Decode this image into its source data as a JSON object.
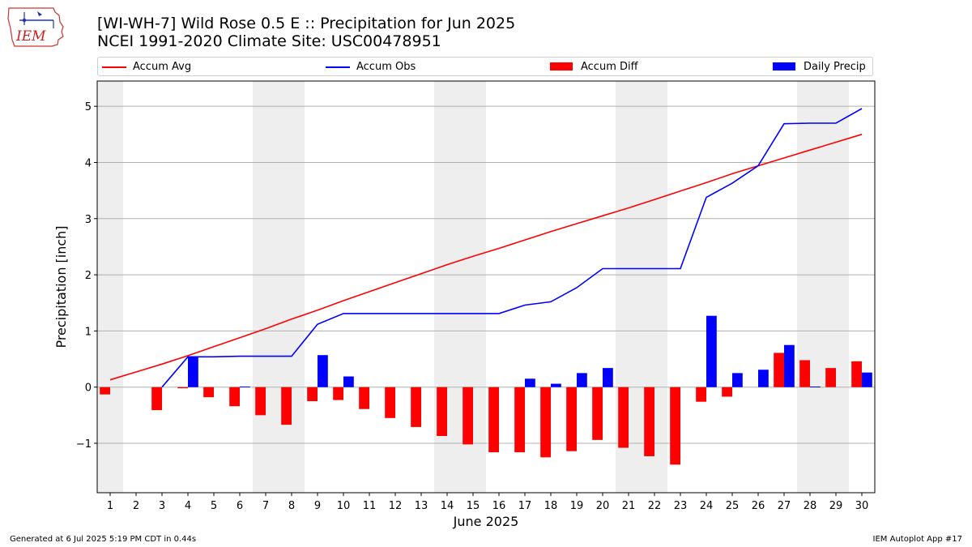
{
  "logo": {
    "text": "IEM"
  },
  "title_line1": "[WI-WH-7] Wild Rose 0.5 E :: Precipitation for Jun 2025",
  "title_line2": "NCEI 1991-2020 Climate Site: USC00478951",
  "legend": {
    "accum_avg": "Accum Avg",
    "accum_obs": "Accum Obs",
    "accum_diff": "Accum Diff",
    "daily_precip": "Daily Precip"
  },
  "footer": {
    "left": "Generated at 6 Jul 2025 5:19 PM CDT in 0.44s",
    "right": "IEM Autoplot App #17"
  },
  "colors": {
    "avg": "#ff0000",
    "obs": "#0000ff",
    "diff": "#ff0000",
    "daily": "#0000ff",
    "weekend_shade": "#eeeeee",
    "grid": "#b0b0b0"
  },
  "chart_data": {
    "type": "bar",
    "xlabel": "June 2025",
    "ylabel": "Precipitation [inch]",
    "xlim": [
      0.5,
      30.5
    ],
    "ylim": [
      -1.88,
      5.45
    ],
    "yticks": [
      -1,
      0,
      1,
      2,
      3,
      4,
      5
    ],
    "ytick_labels": [
      "−1",
      "0",
      "1",
      "2",
      "3",
      "4",
      "5"
    ],
    "grid": true,
    "legend_position": "top",
    "days": [
      1,
      2,
      3,
      4,
      5,
      6,
      7,
      8,
      9,
      10,
      11,
      12,
      13,
      14,
      15,
      16,
      17,
      18,
      19,
      20,
      21,
      22,
      23,
      24,
      25,
      26,
      27,
      28,
      29,
      30
    ],
    "weekend_shading_days": [
      1,
      7,
      8,
      14,
      15,
      21,
      22,
      28,
      29
    ],
    "series": [
      {
        "name": "Accum Avg",
        "kind": "line",
        "values": [
          0.13,
          0.27,
          0.41,
          0.56,
          0.72,
          0.88,
          1.04,
          1.21,
          1.37,
          1.54,
          1.7,
          1.86,
          2.02,
          2.18,
          2.33,
          2.47,
          2.62,
          2.77,
          2.91,
          3.05,
          3.19,
          3.34,
          3.49,
          3.64,
          3.8,
          3.94,
          4.08,
          4.22,
          4.36,
          4.5
        ]
      },
      {
        "name": "Accum Obs",
        "kind": "line",
        "start_day": 3,
        "values": [
          null,
          null,
          0.0,
          0.54,
          0.54,
          0.55,
          0.55,
          0.55,
          1.12,
          1.31,
          1.31,
          1.31,
          1.31,
          1.31,
          1.31,
          1.31,
          1.46,
          1.52,
          1.77,
          2.11,
          2.11,
          2.11,
          2.11,
          3.38,
          3.63,
          3.94,
          4.69,
          4.7,
          4.7,
          4.96
        ]
      },
      {
        "name": "Accum Diff",
        "kind": "bar",
        "values": [
          -0.13,
          null,
          -0.41,
          -0.02,
          -0.18,
          -0.34,
          -0.5,
          -0.67,
          -0.25,
          -0.23,
          -0.39,
          -0.55,
          -0.71,
          -0.87,
          -1.02,
          -1.16,
          -1.16,
          -1.25,
          -1.14,
          -0.94,
          -1.08,
          -1.23,
          -1.38,
          -0.26,
          -0.17,
          0.0,
          0.61,
          0.48,
          0.34,
          0.46
        ]
      },
      {
        "name": "Daily Precip",
        "kind": "bar",
        "values": [
          0,
          0,
          0,
          0.54,
          0,
          0.01,
          0,
          0,
          0.57,
          0.19,
          0,
          0,
          0,
          0,
          0,
          0,
          0.15,
          0.06,
          0.25,
          0.34,
          0,
          0,
          0,
          1.27,
          0.25,
          0.31,
          0.75,
          0.01,
          0,
          0.26
        ]
      }
    ]
  }
}
